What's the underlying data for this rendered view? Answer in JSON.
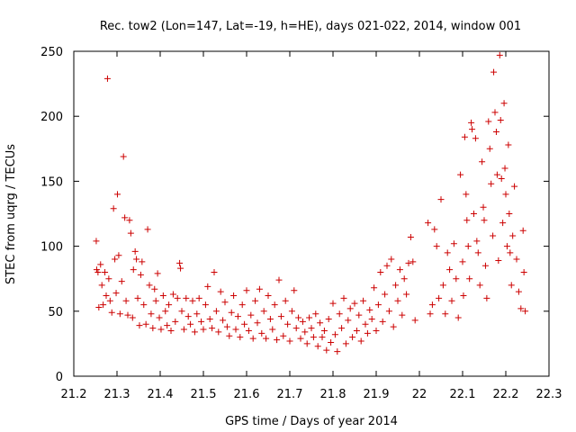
{
  "chart_data": {
    "type": "scatter",
    "title": "Rec. tow2 (Lon=147, Lat=-19, h=HE), days 021-022, 2014, window 001",
    "xlabel": "GPS time / Days of year 2014",
    "ylabel": "STEC from uqrg / TECUs",
    "xlim": [
      21.2,
      22.3
    ],
    "ylim": [
      0,
      250
    ],
    "x_ticks": [
      "21.2",
      "21.3",
      "21.4",
      "21.5",
      "21.6",
      "21.7",
      "21.8",
      "21.9",
      "22",
      "22.1",
      "22.2",
      "22.3"
    ],
    "y_ticks": [
      "0",
      "50",
      "100",
      "150",
      "200",
      "250"
    ],
    "grid": false,
    "marker": "+",
    "color": "#cc0000",
    "series": [
      {
        "points": [
          [
            21.252,
            104
          ],
          [
            21.253,
            82
          ],
          [
            21.256,
            80
          ],
          [
            21.258,
            53
          ],
          [
            21.262,
            86
          ],
          [
            21.265,
            70
          ],
          [
            21.268,
            55
          ],
          [
            21.272,
            80
          ],
          [
            21.275,
            62
          ],
          [
            21.278,
            229
          ],
          [
            21.281,
            75
          ],
          [
            21.284,
            58
          ],
          [
            21.288,
            49
          ],
          [
            21.292,
            129
          ],
          [
            21.295,
            90
          ],
          [
            21.298,
            64
          ],
          [
            21.301,
            140
          ],
          [
            21.304,
            93
          ],
          [
            21.307,
            48
          ],
          [
            21.311,
            73
          ],
          [
            21.315,
            169
          ],
          [
            21.318,
            122
          ],
          [
            21.321,
            58
          ],
          [
            21.325,
            47
          ],
          [
            21.329,
            120
          ],
          [
            21.332,
            110
          ],
          [
            21.336,
            45
          ],
          [
            21.338,
            82
          ],
          [
            21.342,
            96
          ],
          [
            21.345,
            90
          ],
          [
            21.348,
            60
          ],
          [
            21.352,
            39
          ],
          [
            21.355,
            78
          ],
          [
            21.358,
            88
          ],
          [
            21.362,
            55
          ],
          [
            21.367,
            40
          ],
          [
            21.371,
            113
          ],
          [
            21.375,
            70
          ],
          [
            21.379,
            48
          ],
          [
            21.383,
            37
          ],
          [
            21.387,
            67
          ],
          [
            21.39,
            58
          ],
          [
            21.394,
            79
          ],
          [
            21.398,
            45
          ],
          [
            21.402,
            36
          ],
          [
            21.407,
            62
          ],
          [
            21.412,
            50
          ],
          [
            21.416,
            39
          ],
          [
            21.42,
            55
          ],
          [
            21.425,
            35
          ],
          [
            21.43,
            63
          ],
          [
            21.435,
            42
          ],
          [
            21.44,
            60
          ],
          [
            21.445,
            87
          ],
          [
            21.447,
            83
          ],
          [
            21.45,
            50
          ],
          [
            21.455,
            36
          ],
          [
            21.46,
            60
          ],
          [
            21.465,
            46
          ],
          [
            21.47,
            40
          ],
          [
            21.475,
            58
          ],
          [
            21.48,
            34
          ],
          [
            21.485,
            48
          ],
          [
            21.49,
            60
          ],
          [
            21.495,
            42
          ],
          [
            21.5,
            36
          ],
          [
            21.505,
            55
          ],
          [
            21.51,
            69
          ],
          [
            21.515,
            44
          ],
          [
            21.52,
            37
          ],
          [
            21.525,
            80
          ],
          [
            21.53,
            50
          ],
          [
            21.535,
            34
          ],
          [
            21.54,
            65
          ],
          [
            21.545,
            43
          ],
          [
            21.55,
            57
          ],
          [
            21.555,
            38
          ],
          [
            21.56,
            31
          ],
          [
            21.565,
            49
          ],
          [
            21.57,
            62
          ],
          [
            21.575,
            36
          ],
          [
            21.58,
            46
          ],
          [
            21.585,
            30
          ],
          [
            21.59,
            55
          ],
          [
            21.595,
            40
          ],
          [
            21.6,
            66
          ],
          [
            21.605,
            35
          ],
          [
            21.61,
            47
          ],
          [
            21.615,
            29
          ],
          [
            21.62,
            58
          ],
          [
            21.625,
            41
          ],
          [
            21.63,
            67
          ],
          [
            21.635,
            33
          ],
          [
            21.64,
            50
          ],
          [
            21.645,
            29
          ],
          [
            21.65,
            62
          ],
          [
            21.655,
            44
          ],
          [
            21.66,
            36
          ],
          [
            21.665,
            55
          ],
          [
            21.67,
            28
          ],
          [
            21.675,
            74
          ],
          [
            21.68,
            46
          ],
          [
            21.685,
            31
          ],
          [
            21.69,
            58
          ],
          [
            21.695,
            40
          ],
          [
            21.7,
            27
          ],
          [
            21.705,
            50
          ],
          [
            21.71,
            66
          ],
          [
            21.715,
            37
          ],
          [
            21.72,
            45
          ],
          [
            21.725,
            29
          ],
          [
            21.73,
            42
          ],
          [
            21.735,
            34
          ],
          [
            21.74,
            25
          ],
          [
            21.745,
            45
          ],
          [
            21.75,
            37
          ],
          [
            21.755,
            30
          ],
          [
            21.76,
            48
          ],
          [
            21.765,
            23
          ],
          [
            21.77,
            41
          ],
          [
            21.775,
            30
          ],
          [
            21.78,
            35
          ],
          [
            21.785,
            20
          ],
          [
            21.79,
            44
          ],
          [
            21.795,
            26
          ],
          [
            21.8,
            56
          ],
          [
            21.805,
            32
          ],
          [
            21.81,
            19
          ],
          [
            21.815,
            48
          ],
          [
            21.82,
            37
          ],
          [
            21.825,
            60
          ],
          [
            21.83,
            25
          ],
          [
            21.835,
            43
          ],
          [
            21.84,
            52
          ],
          [
            21.845,
            30
          ],
          [
            21.85,
            56
          ],
          [
            21.855,
            35
          ],
          [
            21.86,
            47
          ],
          [
            21.865,
            27
          ],
          [
            21.87,
            58
          ],
          [
            21.875,
            40
          ],
          [
            21.88,
            33
          ],
          [
            21.885,
            51
          ],
          [
            21.89,
            44
          ],
          [
            21.895,
            68
          ],
          [
            21.9,
            35
          ],
          [
            21.905,
            55
          ],
          [
            21.91,
            80
          ],
          [
            21.915,
            42
          ],
          [
            21.92,
            63
          ],
          [
            21.925,
            85
          ],
          [
            21.93,
            50
          ],
          [
            21.935,
            90
          ],
          [
            21.94,
            38
          ],
          [
            21.945,
            70
          ],
          [
            21.95,
            58
          ],
          [
            21.955,
            82
          ],
          [
            21.96,
            47
          ],
          [
            21.965,
            75
          ],
          [
            21.97,
            63
          ],
          [
            21.975,
            87
          ],
          [
            21.98,
            107
          ],
          [
            21.985,
            88
          ],
          [
            21.99,
            43
          ],
          [
            22.02,
            118
          ],
          [
            22.025,
            48
          ],
          [
            22.03,
            55
          ],
          [
            22.035,
            113
          ],
          [
            22.04,
            100
          ],
          [
            22.045,
            60
          ],
          [
            22.05,
            136
          ],
          [
            22.055,
            70
          ],
          [
            22.06,
            48
          ],
          [
            22.065,
            95
          ],
          [
            22.07,
            82
          ],
          [
            22.075,
            58
          ],
          [
            22.08,
            102
          ],
          [
            22.085,
            75
          ],
          [
            22.09,
            45
          ],
          [
            22.095,
            155
          ],
          [
            22.1,
            88
          ],
          [
            22.102,
            62
          ],
          [
            22.105,
            184
          ],
          [
            22.108,
            140
          ],
          [
            22.11,
            120
          ],
          [
            22.113,
            100
          ],
          [
            22.116,
            75
          ],
          [
            22.12,
            195
          ],
          [
            22.122,
            190
          ],
          [
            22.126,
            125
          ],
          [
            22.13,
            183
          ],
          [
            22.133,
            104
          ],
          [
            22.136,
            95
          ],
          [
            22.14,
            70
          ],
          [
            22.145,
            165
          ],
          [
            22.148,
            130
          ],
          [
            22.15,
            120
          ],
          [
            22.153,
            85
          ],
          [
            22.156,
            60
          ],
          [
            22.16,
            196
          ],
          [
            22.163,
            175
          ],
          [
            22.166,
            148
          ],
          [
            22.17,
            108
          ],
          [
            22.172,
            234
          ],
          [
            22.175,
            203
          ],
          [
            22.178,
            188
          ],
          [
            22.18,
            155
          ],
          [
            22.183,
            89
          ],
          [
            22.186,
            247
          ],
          [
            22.188,
            197
          ],
          [
            22.19,
            152
          ],
          [
            22.193,
            118
          ],
          [
            22.196,
            210
          ],
          [
            22.198,
            160
          ],
          [
            22.2,
            140
          ],
          [
            22.203,
            100
          ],
          [
            22.206,
            178
          ],
          [
            22.208,
            125
          ],
          [
            22.21,
            95
          ],
          [
            22.213,
            70
          ],
          [
            22.216,
            108
          ],
          [
            22.22,
            146
          ],
          [
            22.225,
            90
          ],
          [
            22.23,
            65
          ],
          [
            22.235,
            52
          ],
          [
            22.24,
            112
          ],
          [
            22.242,
            80
          ],
          [
            22.245,
            50
          ]
        ]
      }
    ]
  }
}
